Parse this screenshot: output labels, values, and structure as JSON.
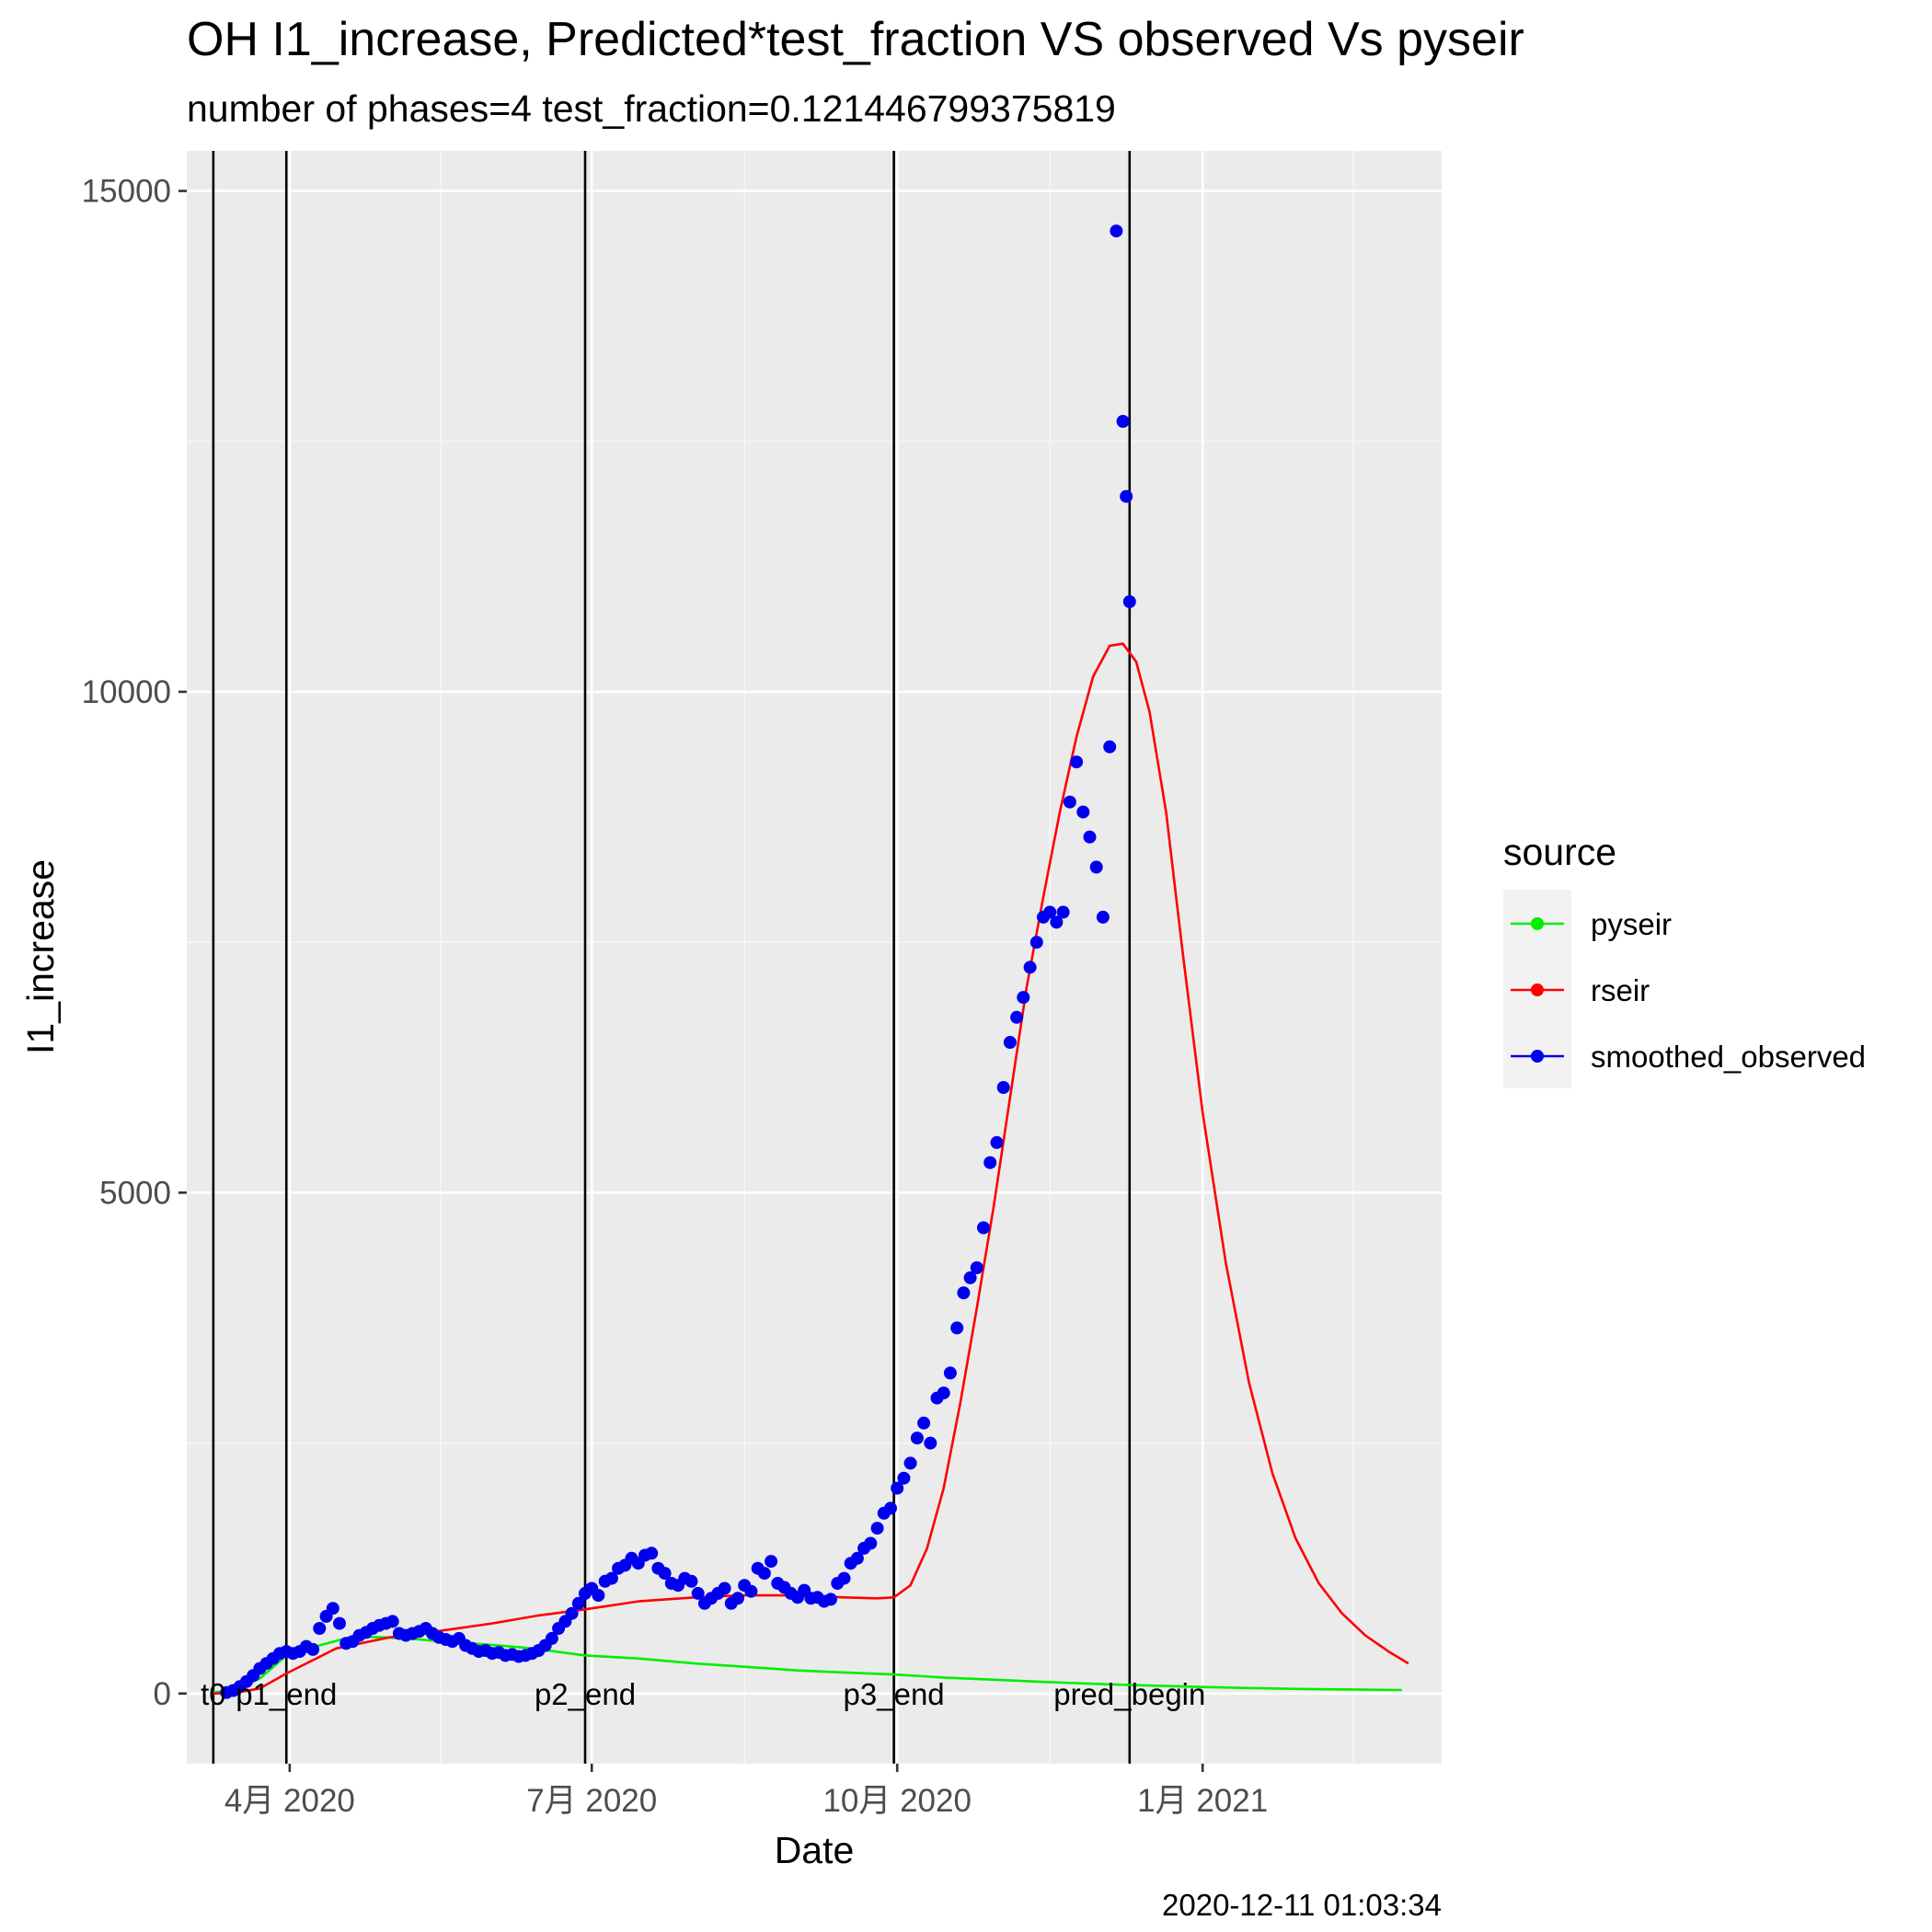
{
  "chart_data": {
    "type": "line",
    "title": "OH I1_increase, Predicted*test_fraction VS observed Vs pyseir",
    "subtitle": "number of phases=4   test_fraction=0.121446799375819",
    "xlabel": "Date",
    "ylabel": "I1_increase",
    "caption": "2020-12-11 01:03:34",
    "xlim": [
      "2020-03-01",
      "2021-03-14"
    ],
    "ylim": [
      -700,
      15400
    ],
    "grid": true,
    "x_ticks": [
      {
        "date": "2020-04-01",
        "label": "4月 2020"
      },
      {
        "date": "2020-07-01",
        "label": "7月 2020"
      },
      {
        "date": "2020-10-01",
        "label": "10月 2020"
      },
      {
        "date": "2021-01-01",
        "label": "1月 2021"
      }
    ],
    "y_ticks": [
      {
        "value": 0,
        "label": "0"
      },
      {
        "value": 5000,
        "label": "5000"
      },
      {
        "value": 10000,
        "label": "10000"
      },
      {
        "value": 15000,
        "label": "15000"
      }
    ],
    "legend": {
      "title": "source",
      "position": "right"
    },
    "vertical_lines": [
      {
        "date": "2020-03-09",
        "label": "t0"
      },
      {
        "date": "2020-03-31",
        "label": "p1_end"
      },
      {
        "date": "2020-06-29",
        "label": "p2_end"
      },
      {
        "date": "2020-09-30",
        "label": "p3_end"
      },
      {
        "date": "2020-12-10",
        "label": "pred_begin"
      }
    ],
    "series": [
      {
        "name": "pyseir",
        "kind": "line",
        "color": "#00ee00",
        "x": [
          "2020-03-09",
          "2020-03-16",
          "2020-03-23",
          "2020-03-31",
          "2020-04-10",
          "2020-04-20",
          "2020-04-30",
          "2020-05-10",
          "2020-05-20",
          "2020-05-30",
          "2020-06-10",
          "2020-06-20",
          "2020-06-29",
          "2020-07-15",
          "2020-08-01",
          "2020-08-15",
          "2020-09-01",
          "2020-09-15",
          "2020-09-30",
          "2020-10-15",
          "2020-11-01",
          "2020-11-15",
          "2020-12-01",
          "2020-12-10",
          "2021-01-01",
          "2021-01-15",
          "2021-02-01",
          "2021-02-15",
          "2021-03-02"
        ],
        "y": [
          10,
          40,
          150,
          380,
          480,
          570,
          560,
          540,
          510,
          490,
          460,
          420,
          380,
          350,
          300,
          270,
          230,
          210,
          190,
          160,
          135,
          115,
          95,
          85,
          65,
          55,
          45,
          40,
          35
        ]
      },
      {
        "name": "rseir",
        "kind": "line",
        "color": "#ff0000",
        "x": [
          "2020-03-09",
          "2020-03-16",
          "2020-03-23",
          "2020-03-31",
          "2020-04-15",
          "2020-05-01",
          "2020-05-15",
          "2020-06-01",
          "2020-06-15",
          "2020-06-29",
          "2020-07-15",
          "2020-08-01",
          "2020-08-15",
          "2020-09-01",
          "2020-09-15",
          "2020-09-25",
          "2020-09-30",
          "2020-10-05",
          "2020-10-10",
          "2020-10-15",
          "2020-10-20",
          "2020-10-25",
          "2020-10-30",
          "2020-11-04",
          "2020-11-09",
          "2020-11-14",
          "2020-11-19",
          "2020-11-24",
          "2020-11-29",
          "2020-12-04",
          "2020-12-08",
          "2020-12-12",
          "2020-12-16",
          "2020-12-21",
          "2020-12-26",
          "2021-01-01",
          "2021-01-08",
          "2021-01-15",
          "2021-01-22",
          "2021-01-29",
          "2021-02-05",
          "2021-02-12",
          "2021-02-19",
          "2021-02-26",
          "2021-03-04"
        ],
        "y": [
          0,
          10,
          50,
          200,
          450,
          560,
          620,
          700,
          780,
          840,
          920,
          960,
          980,
          980,
          960,
          950,
          960,
          1080,
          1450,
          2050,
          2900,
          3850,
          4850,
          5950,
          7050,
          7950,
          8800,
          9550,
          10150,
          10460,
          10480,
          10300,
          9800,
          8800,
          7400,
          5800,
          4300,
          3100,
          2200,
          1550,
          1100,
          800,
          580,
          420,
          300
        ]
      },
      {
        "name": "smoothed_observed",
        "kind": "points",
        "color": "#0000ee",
        "x": [
          "2020-03-13",
          "2020-03-15",
          "2020-03-17",
          "2020-03-19",
          "2020-03-21",
          "2020-03-23",
          "2020-03-25",
          "2020-03-27",
          "2020-03-29",
          "2020-03-31",
          "2020-04-02",
          "2020-04-04",
          "2020-04-06",
          "2020-04-08",
          "2020-04-10",
          "2020-04-12",
          "2020-04-14",
          "2020-04-16",
          "2020-04-18",
          "2020-04-20",
          "2020-04-22",
          "2020-04-24",
          "2020-04-26",
          "2020-04-28",
          "2020-04-30",
          "2020-05-02",
          "2020-05-04",
          "2020-05-06",
          "2020-05-08",
          "2020-05-10",
          "2020-05-12",
          "2020-05-14",
          "2020-05-16",
          "2020-05-18",
          "2020-05-20",
          "2020-05-22",
          "2020-05-24",
          "2020-05-26",
          "2020-05-28",
          "2020-05-30",
          "2020-06-01",
          "2020-06-03",
          "2020-06-05",
          "2020-06-07",
          "2020-06-09",
          "2020-06-11",
          "2020-06-13",
          "2020-06-15",
          "2020-06-17",
          "2020-06-19",
          "2020-06-21",
          "2020-06-23",
          "2020-06-25",
          "2020-06-27",
          "2020-06-29",
          "2020-07-01",
          "2020-07-03",
          "2020-07-05",
          "2020-07-07",
          "2020-07-09",
          "2020-07-11",
          "2020-07-13",
          "2020-07-15",
          "2020-07-17",
          "2020-07-19",
          "2020-07-21",
          "2020-07-23",
          "2020-07-25",
          "2020-07-27",
          "2020-07-29",
          "2020-07-31",
          "2020-08-02",
          "2020-08-04",
          "2020-08-06",
          "2020-08-08",
          "2020-08-10",
          "2020-08-12",
          "2020-08-14",
          "2020-08-16",
          "2020-08-18",
          "2020-08-20",
          "2020-08-22",
          "2020-08-24",
          "2020-08-26",
          "2020-08-28",
          "2020-08-30",
          "2020-09-01",
          "2020-09-03",
          "2020-09-05",
          "2020-09-07",
          "2020-09-09",
          "2020-09-11",
          "2020-09-13",
          "2020-09-15",
          "2020-09-17",
          "2020-09-19",
          "2020-09-21",
          "2020-09-23",
          "2020-09-25",
          "2020-09-27",
          "2020-09-29",
          "2020-10-01",
          "2020-10-03",
          "2020-10-05",
          "2020-10-07",
          "2020-10-09",
          "2020-10-11",
          "2020-10-13",
          "2020-10-15",
          "2020-10-17",
          "2020-10-19",
          "2020-10-21",
          "2020-10-23",
          "2020-10-25",
          "2020-10-27",
          "2020-10-29",
          "2020-10-31",
          "2020-11-02",
          "2020-11-04",
          "2020-11-06",
          "2020-11-08",
          "2020-11-10",
          "2020-11-12",
          "2020-11-14",
          "2020-11-16",
          "2020-11-18",
          "2020-11-20",
          "2020-11-22",
          "2020-11-24",
          "2020-11-26",
          "2020-11-28",
          "2020-11-30",
          "2020-12-02",
          "2020-12-04",
          "2020-12-06",
          "2020-12-08",
          "2020-12-09",
          "2020-12-10"
        ],
        "y": [
          10,
          30,
          70,
          120,
          180,
          250,
          300,
          350,
          400,
          420,
          400,
          420,
          470,
          440,
          650,
          770,
          850,
          700,
          500,
          520,
          580,
          610,
          650,
          680,
          700,
          720,
          600,
          580,
          600,
          620,
          650,
          600,
          560,
          540,
          520,
          550,
          480,
          450,
          420,
          430,
          400,
          410,
          380,
          390,
          370,
          380,
          400,
          430,
          480,
          550,
          650,
          720,
          800,
          900,
          1000,
          1050,
          980,
          1120,
          1150,
          1250,
          1280,
          1350,
          1300,
          1380,
          1400,
          1250,
          1200,
          1100,
          1080,
          1150,
          1120,
          1000,
          900,
          950,
          1000,
          1050,
          900,
          950,
          1080,
          1020,
          1250,
          1200,
          1320,
          1100,
          1060,
          1000,
          960,
          1030,
          950,
          960,
          920,
          940,
          1100,
          1150,
          1300,
          1350,
          1450,
          1500,
          1650,
          1800,
          1850,
          2050,
          2150,
          2300,
          2550,
          2700,
          2500,
          2950,
          3000,
          3200,
          3650,
          4000,
          4150,
          4250,
          4650,
          5300,
          5500,
          6050,
          6500,
          6750,
          6950,
          7250,
          7500,
          7750,
          7800,
          7700,
          7800,
          8900,
          9300,
          8800,
          8550,
          8250,
          7750,
          9450,
          14600,
          12700,
          11950,
          10900
        ]
      }
    ]
  }
}
